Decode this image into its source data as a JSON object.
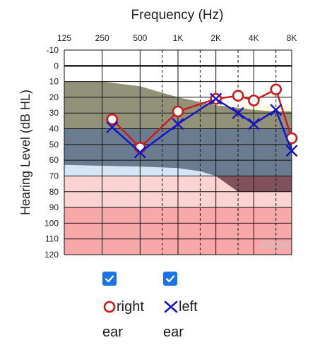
{
  "chart_data": {
    "type": "line",
    "title": "Frequency (Hz)",
    "ylabel": "Hearing Level (dB HL)",
    "x_ticks": [
      "125",
      "250",
      "500",
      "1K",
      "2K",
      "4K",
      "8K"
    ],
    "y_ticks": [
      "-10",
      "0",
      "10",
      "20",
      "30",
      "40",
      "50",
      "60",
      "70",
      "80",
      "90",
      "100",
      "110",
      "120"
    ],
    "ylim": [
      -10,
      120
    ],
    "y_inverted": true,
    "x_scale": "log",
    "watermark": "clone",
    "bands": [
      {
        "range": [
          -10,
          25
        ],
        "color": "#ffffff"
      },
      {
        "range": [
          25,
          40
        ],
        "color": "#fffbe0"
      },
      {
        "range": [
          40,
          70
        ],
        "color": "#d6e6f7"
      },
      {
        "range": [
          70,
          90
        ],
        "color": "#fbd3d3"
      },
      {
        "range": [
          90,
          120
        ],
        "color": "#f8a8a8"
      }
    ],
    "speech_banana": [
      {
        "color": "#8c8c74",
        "upper": [
          [
            125,
            10
          ],
          [
            250,
            10
          ],
          [
            500,
            13
          ],
          [
            1000,
            20
          ],
          [
            2000,
            25
          ],
          [
            4000,
            28
          ],
          [
            6000,
            29
          ],
          [
            8000,
            29
          ]
        ],
        "lower": [
          [
            8000,
            40
          ],
          [
            2000,
            40
          ],
          [
            125,
            40
          ]
        ]
      },
      {
        "color": "#65768a",
        "upper": [
          [
            8000,
            40
          ],
          [
            2000,
            40
          ],
          [
            125,
            40
          ]
        ],
        "lower": [
          [
            125,
            63
          ],
          [
            500,
            64
          ],
          [
            1000,
            65
          ],
          [
            1500,
            67
          ],
          [
            2000,
            70
          ],
          [
            8000,
            70
          ]
        ]
      },
      {
        "color": "#7a4a55",
        "upper": [
          [
            2000,
            70
          ],
          [
            8000,
            70
          ]
        ],
        "lower": [
          [
            8000,
            80
          ],
          [
            3000,
            80
          ],
          [
            2000,
            70
          ]
        ]
      }
    ],
    "series": [
      {
        "name": "right",
        "color": "#cc1a1a",
        "marker": "circle",
        "x": [
          300,
          500,
          1000,
          2000,
          3000,
          4000,
          6000,
          8000
        ],
        "values": [
          34,
          52,
          29,
          21,
          19,
          22,
          15,
          46
        ]
      },
      {
        "name": "left",
        "color": "#1515c8",
        "marker": "x",
        "x": [
          300,
          500,
          1000,
          2000,
          3000,
          4000,
          6000,
          8000
        ],
        "values": [
          39,
          55,
          37,
          21,
          30,
          37,
          28,
          54
        ]
      }
    ]
  },
  "legend": {
    "right_checked": true,
    "left_checked": true,
    "right_label": "right",
    "left_label": "left",
    "ear_word": "ear",
    "checkbox_color": "#1a73e8"
  }
}
